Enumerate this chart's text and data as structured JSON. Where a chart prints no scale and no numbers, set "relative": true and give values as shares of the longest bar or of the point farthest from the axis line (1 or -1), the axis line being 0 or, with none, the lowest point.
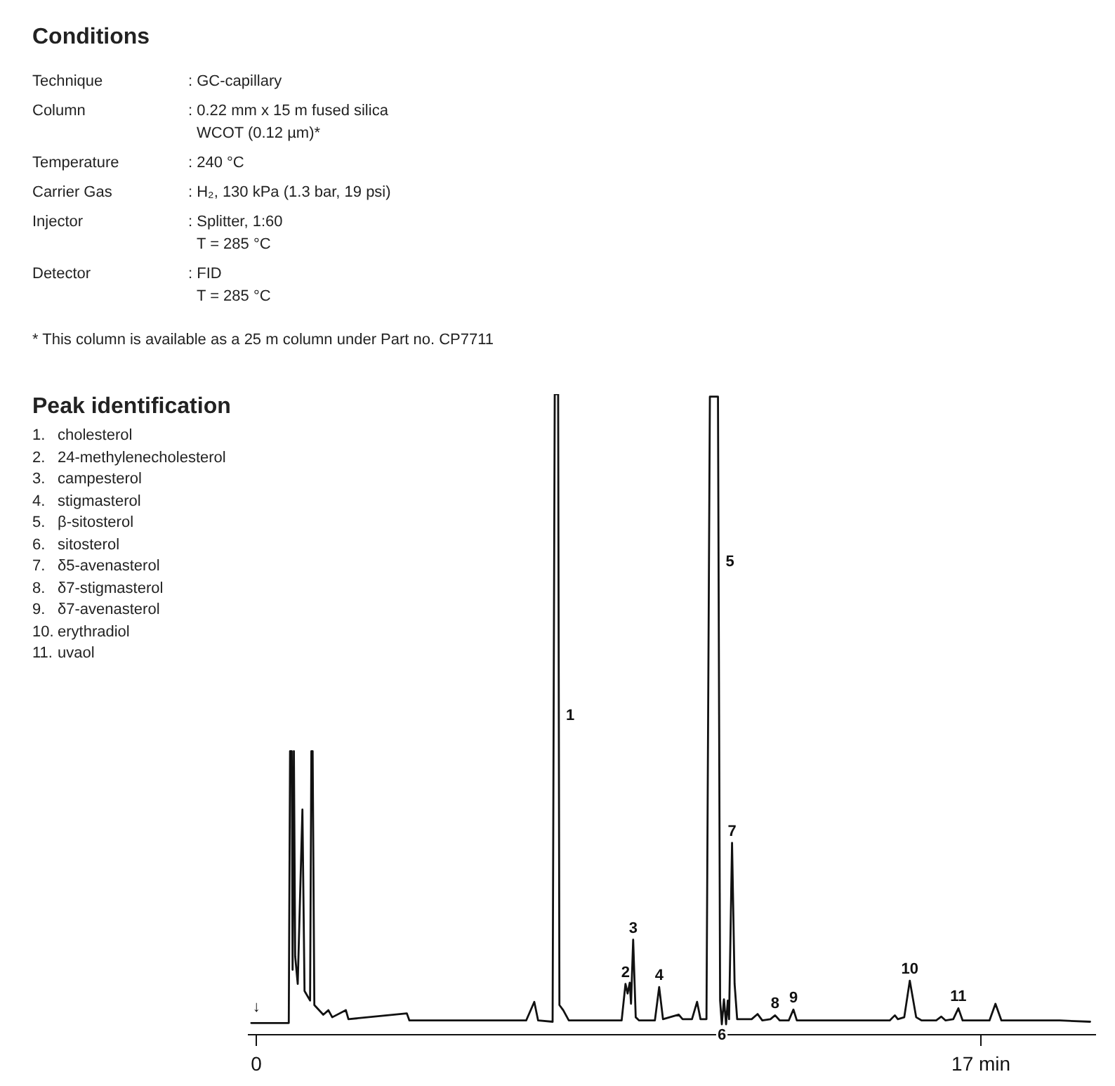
{
  "chart_data": {
    "type": "line",
    "relative": true,
    "color": "#111111",
    "marker": "none",
    "line_style": "solid",
    "grid": false,
    "tick_labels": "x",
    "xlim": [
      -0.2,
      19.7
    ],
    "xticks": [
      0,
      {
        "value": 17,
        "label": "17 min"
      }
    ],
    "x": [
      -0.12,
      0,
      0.76,
      0.79,
      0.83,
      0.85,
      0.88,
      0.91,
      0.97,
      1.08,
      1.13,
      1.26,
      1.29,
      1.32,
      1.36,
      1.57,
      1.69,
      1.78,
      2.1,
      2.16,
      3.53,
      3.59,
      6.33,
      6.52,
      6.61,
      6.95,
      7.0,
      7.08,
      7.11,
      7.2,
      7.33,
      8.57,
      8.66,
      8.71,
      8.76,
      8.79,
      8.84,
      8.9,
      8.98,
      9.35,
      9.45,
      9.54,
      9.91,
      10.0,
      10.22,
      10.34,
      10.42,
      10.56,
      10.64,
      10.83,
      10.88,
      10.92,
      10.97,
      11.02,
      11.06,
      11.09,
      11.16,
      11.22,
      11.28,
      11.62,
      11.76,
      11.87,
      12.06,
      12.17,
      12.28,
      12.49,
      12.6,
      12.68,
      14.86,
      14.98,
      15.05,
      15.2,
      15.33,
      15.48,
      15.61,
      15.95,
      16.07,
      16.17,
      16.35,
      16.47,
      16.57,
      17.2,
      17.34,
      17.48,
      18.85,
      19.56
    ],
    "values": [
      0.019,
      0.019,
      0.019,
      0.443,
      0.443,
      0.102,
      0.443,
      0.123,
      0.08,
      0.352,
      0.069,
      0.054,
      0.443,
      0.443,
      0.047,
      0.032,
      0.039,
      0.028,
      0.039,
      0.025,
      0.034,
      0.023,
      0.023,
      0.052,
      0.023,
      0.021,
      1.0,
      1.0,
      0.047,
      0.039,
      0.023,
      0.023,
      0.08,
      0.065,
      0.082,
      0.049,
      0.149,
      0.028,
      0.023,
      0.023,
      0.075,
      0.025,
      0.032,
      0.025,
      0.025,
      0.052,
      0.025,
      0.025,
      0.996,
      0.996,
      0.054,
      0.017,
      0.056,
      0.017,
      0.054,
      0.025,
      0.3,
      0.08,
      0.025,
      0.025,
      0.033,
      0.023,
      0.025,
      0.031,
      0.023,
      0.023,
      0.04,
      0.023,
      0.023,
      0.031,
      0.025,
      0.028,
      0.085,
      0.028,
      0.023,
      0.023,
      0.029,
      0.023,
      0.025,
      0.042,
      0.023,
      0.023,
      0.049,
      0.023,
      0.023,
      0.021
    ],
    "annotations": [
      "Conditions",
      "Technique",
      ": GC-capillary",
      "Column",
      ": 0.22 mm x 15 m fused silica\nWCOT (0.12 µm)*",
      "Temperature",
      ": 240 °C",
      "Carrier Gas",
      ": H₂, 130 kPa (1.3 bar, 19 psi)",
      "Injector",
      ": Splitter, 1:60\nT = 285 °C",
      "Detector",
      ": FID\nT = 285 °C",
      "* This column is available as a 25 m column under Part no. CP7711",
      "Peak identification",
      "1. cholesterol",
      "2. 24-methylenecholesterol",
      "3. campesterol",
      "4. stigmasterol",
      "5. β-sitosterol",
      "6. sitosterol",
      "7. δ5-avenasterol",
      "8. δ7-stigmasterol",
      "9. δ7-avenasterol",
      "10. erythradiol",
      "11. uvaol",
      {
        "text": "↓",
        "x": 0,
        "y": 0.019
      },
      {
        "text": "1",
        "x": 7.096,
        "y": 0.5
      },
      {
        "text": "2",
        "x": 8.66,
        "y": 0.08
      },
      {
        "text": "3",
        "x": 8.84,
        "y": 0.149
      },
      {
        "text": "4",
        "x": 9.45,
        "y": 0.075
      },
      {
        "text": "5",
        "x": 10.844,
        "y": 0.74
      },
      {
        "text": "6",
        "x": 10.92,
        "y": 0.017
      },
      {
        "text": "7",
        "x": 11.16,
        "y": 0.3
      },
      {
        "text": "8",
        "x": 12.17,
        "y": 0.031
      },
      {
        "text": "9",
        "x": 12.6,
        "y": 0.04
      },
      {
        "text": "10",
        "x": 15.33,
        "y": 0.085
      },
      {
        "text": "11",
        "x": 16.47,
        "y": 0.042
      }
    ]
  }
}
